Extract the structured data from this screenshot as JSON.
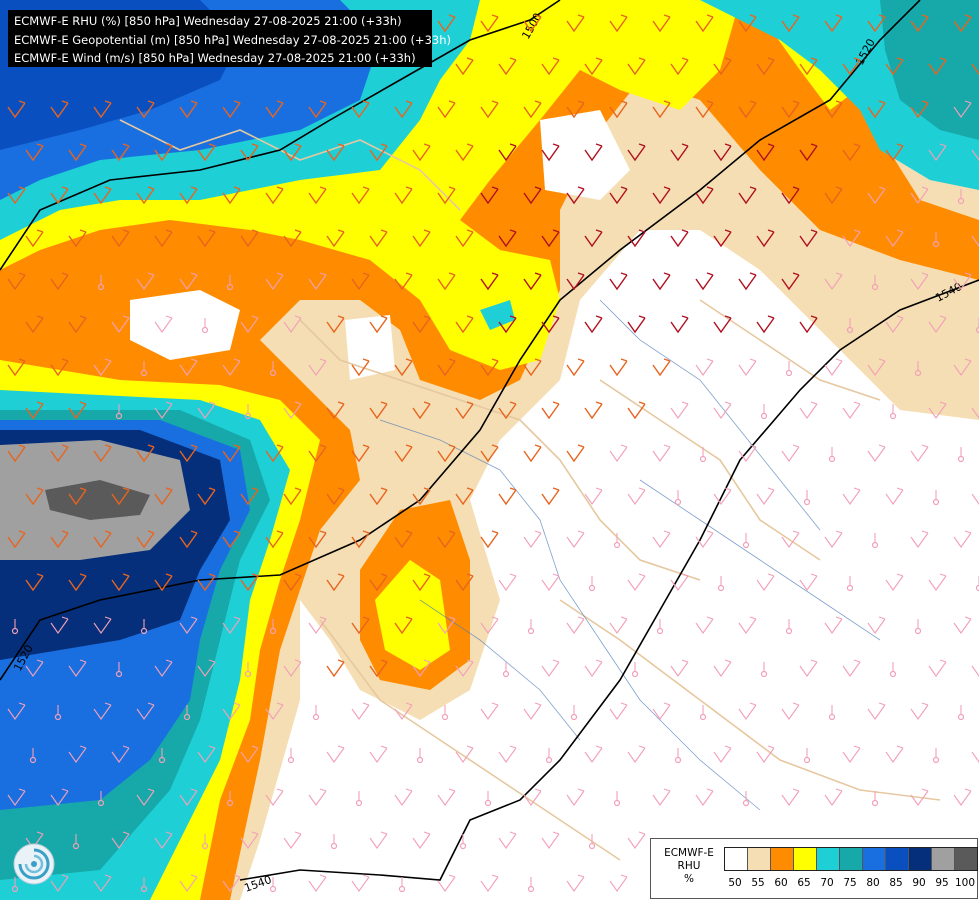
{
  "title_lines": [
    "ECMWF-E RHU (%) [850 hPa] Wednesday 27-08-2025 21:00 (+33h)",
    "ECMWF-E Geopotential (m) [850 hPa] Wednesday 27-08-2025 21:00 (+33h)",
    "ECMWF-E Wind (m/s) [850 hPa] Wednesday 27-08-2025 21:00 (+33h)"
  ],
  "contours": {
    "line_color": "#000000",
    "labels": [
      "1500",
      "1520",
      "1520",
      "1540",
      "1540"
    ]
  },
  "legend": {
    "model": "ECMWF-E",
    "variable": "RHU",
    "unit": "%",
    "colors": [
      "#ffffff",
      "#f5deb3",
      "#ff8c00",
      "#ffff00",
      "#1ecfd6",
      "#17a9a9",
      "#1a6fe0",
      "#0a4fc0",
      "#052f7a",
      "#a0a0a0",
      "#5a5a5a"
    ],
    "ticks": [
      "50",
      "55",
      "60",
      "65",
      "70",
      "75",
      "80",
      "85",
      "90",
      "95",
      "100"
    ]
  },
  "wind_colors": {
    "calm": "#f2a0b8",
    "moderate": "#e8641e",
    "strong": "#b01020"
  },
  "logo_icon": "ecmwf-swirl-icon"
}
